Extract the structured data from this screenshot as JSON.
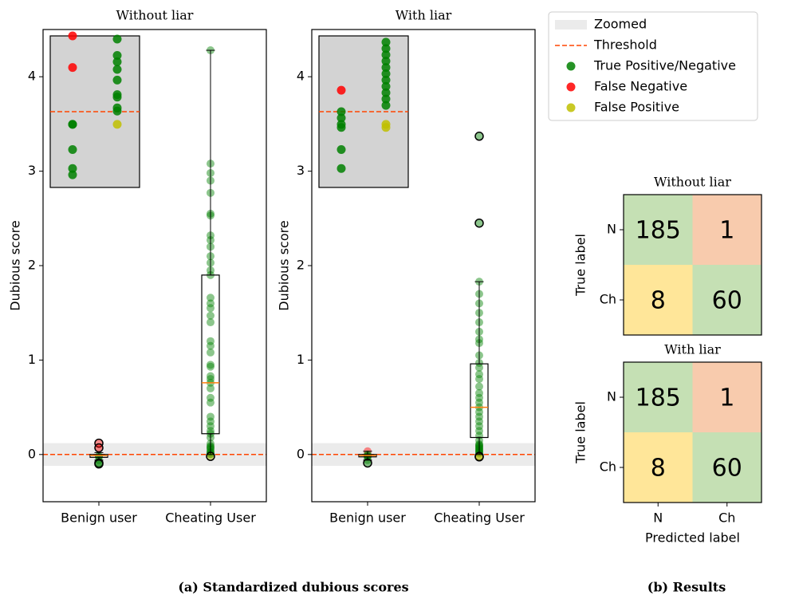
{
  "chart_data": [
    {
      "type": "box",
      "title": "Without liar",
      "ylabel": "Dubious score",
      "categories": [
        "Benign user",
        "Cheating User"
      ],
      "ylim": [
        -0.5,
        4.5
      ],
      "yticks": [
        0,
        1,
        2,
        3,
        4
      ],
      "threshold": 0,
      "zoom": [
        -0.12,
        0.12
      ],
      "boxes": [
        {
          "whislo": -0.06,
          "q1": -0.03,
          "med": -0.01,
          "q3": 0.0,
          "whishi": 0.02
        },
        {
          "whislo": 0.0,
          "q1": 0.22,
          "med": 0.76,
          "q3": 1.9,
          "whishi": 4.28
        }
      ],
      "points": [
        [
          0.12,
          0.07,
          -0.02,
          -0.02,
          -0.06,
          -0.09,
          -0.1
        ],
        [
          4.28,
          3.08,
          2.98,
          2.9,
          2.77,
          2.55,
          2.53,
          2.32,
          2.27,
          2.2,
          2.1,
          2.03,
          1.95,
          1.9,
          1.66,
          1.6,
          1.55,
          1.47,
          1.4,
          1.2,
          1.15,
          1.08,
          0.95,
          0.93,
          0.83,
          0.8,
          0.76,
          0.7,
          0.6,
          0.55,
          0.4,
          0.35,
          0.3,
          0.25,
          0.22,
          0.18,
          0.115,
          0.089,
          0.079,
          0.067,
          0.05,
          0.027,
          0.023,
          0.006,
          0.001,
          -0.02
        ]
      ]
    },
    {
      "type": "box",
      "title": "With liar",
      "ylabel": "Dubious score",
      "categories": [
        "Benign user",
        "Cheating User"
      ],
      "ylim": [
        -0.5,
        4.5
      ],
      "yticks": [
        0,
        1,
        2,
        3,
        4
      ],
      "threshold": 0,
      "zoom": [
        -0.12,
        0.12
      ],
      "boxes": [
        {
          "whislo": -0.06,
          "q1": -0.025,
          "med": -0.01,
          "q3": 0.0,
          "whishi": 0.034
        },
        {
          "whislo": 0.0,
          "q1": 0.18,
          "med": 0.5,
          "q3": 0.96,
          "whishi": 1.83
        }
      ],
      "points": [
        [
          0.034,
          0.0,
          -0.01,
          -0.02,
          -0.025,
          -0.06,
          -0.09
        ],
        [
          3.37,
          2.45,
          1.83,
          1.7,
          1.6,
          1.5,
          1.4,
          1.3,
          1.22,
          1.18,
          1.05,
          0.97,
          0.92,
          0.85,
          0.8,
          0.72,
          0.65,
          0.6,
          0.55,
          0.5,
          0.45,
          0.4,
          0.35,
          0.3,
          0.25,
          0.2,
          0.15,
          0.11,
          0.1,
          0.09,
          0.08,
          0.07,
          0.06,
          0.05,
          0.04,
          0.03,
          0.02,
          0.01,
          -0.02,
          -0.025
        ]
      ]
    },
    {
      "type": "confusion",
      "title": "Without liar",
      "ylabel": "True label",
      "yticklabels": [
        "N",
        "Ch"
      ],
      "values": [
        [
          185,
          1
        ],
        [
          8,
          60
        ]
      ],
      "colors": [
        [
          "#c5e0b4",
          "#f8cbad"
        ],
        [
          "#ffe699",
          "#c5e0b4"
        ]
      ]
    },
    {
      "type": "confusion",
      "title": "With liar",
      "ylabel": "True label",
      "yticklabels": [
        "N",
        "Ch"
      ],
      "xticklabels": [
        "N",
        "Ch"
      ],
      "xlabel": "Predicted label",
      "values": [
        [
          185,
          1
        ],
        [
          8,
          60
        ]
      ],
      "colors": [
        [
          "#c5e0b4",
          "#f8cbad"
        ],
        [
          "#ffe699",
          "#c5e0b4"
        ]
      ]
    }
  ],
  "legend": [
    {
      "name": "Zoomed",
      "color": "#ebebeb"
    },
    {
      "name": "Threshold",
      "color": "#ff4500"
    },
    {
      "name": "True Positive/Negative",
      "color": "#008000"
    },
    {
      "name": "False Negative",
      "color": "#ff0000"
    },
    {
      "name": "False Positive",
      "color": "#bfbf00"
    }
  ],
  "captions": [
    "(a) Standardized dubious scores",
    "(b) Results"
  ]
}
